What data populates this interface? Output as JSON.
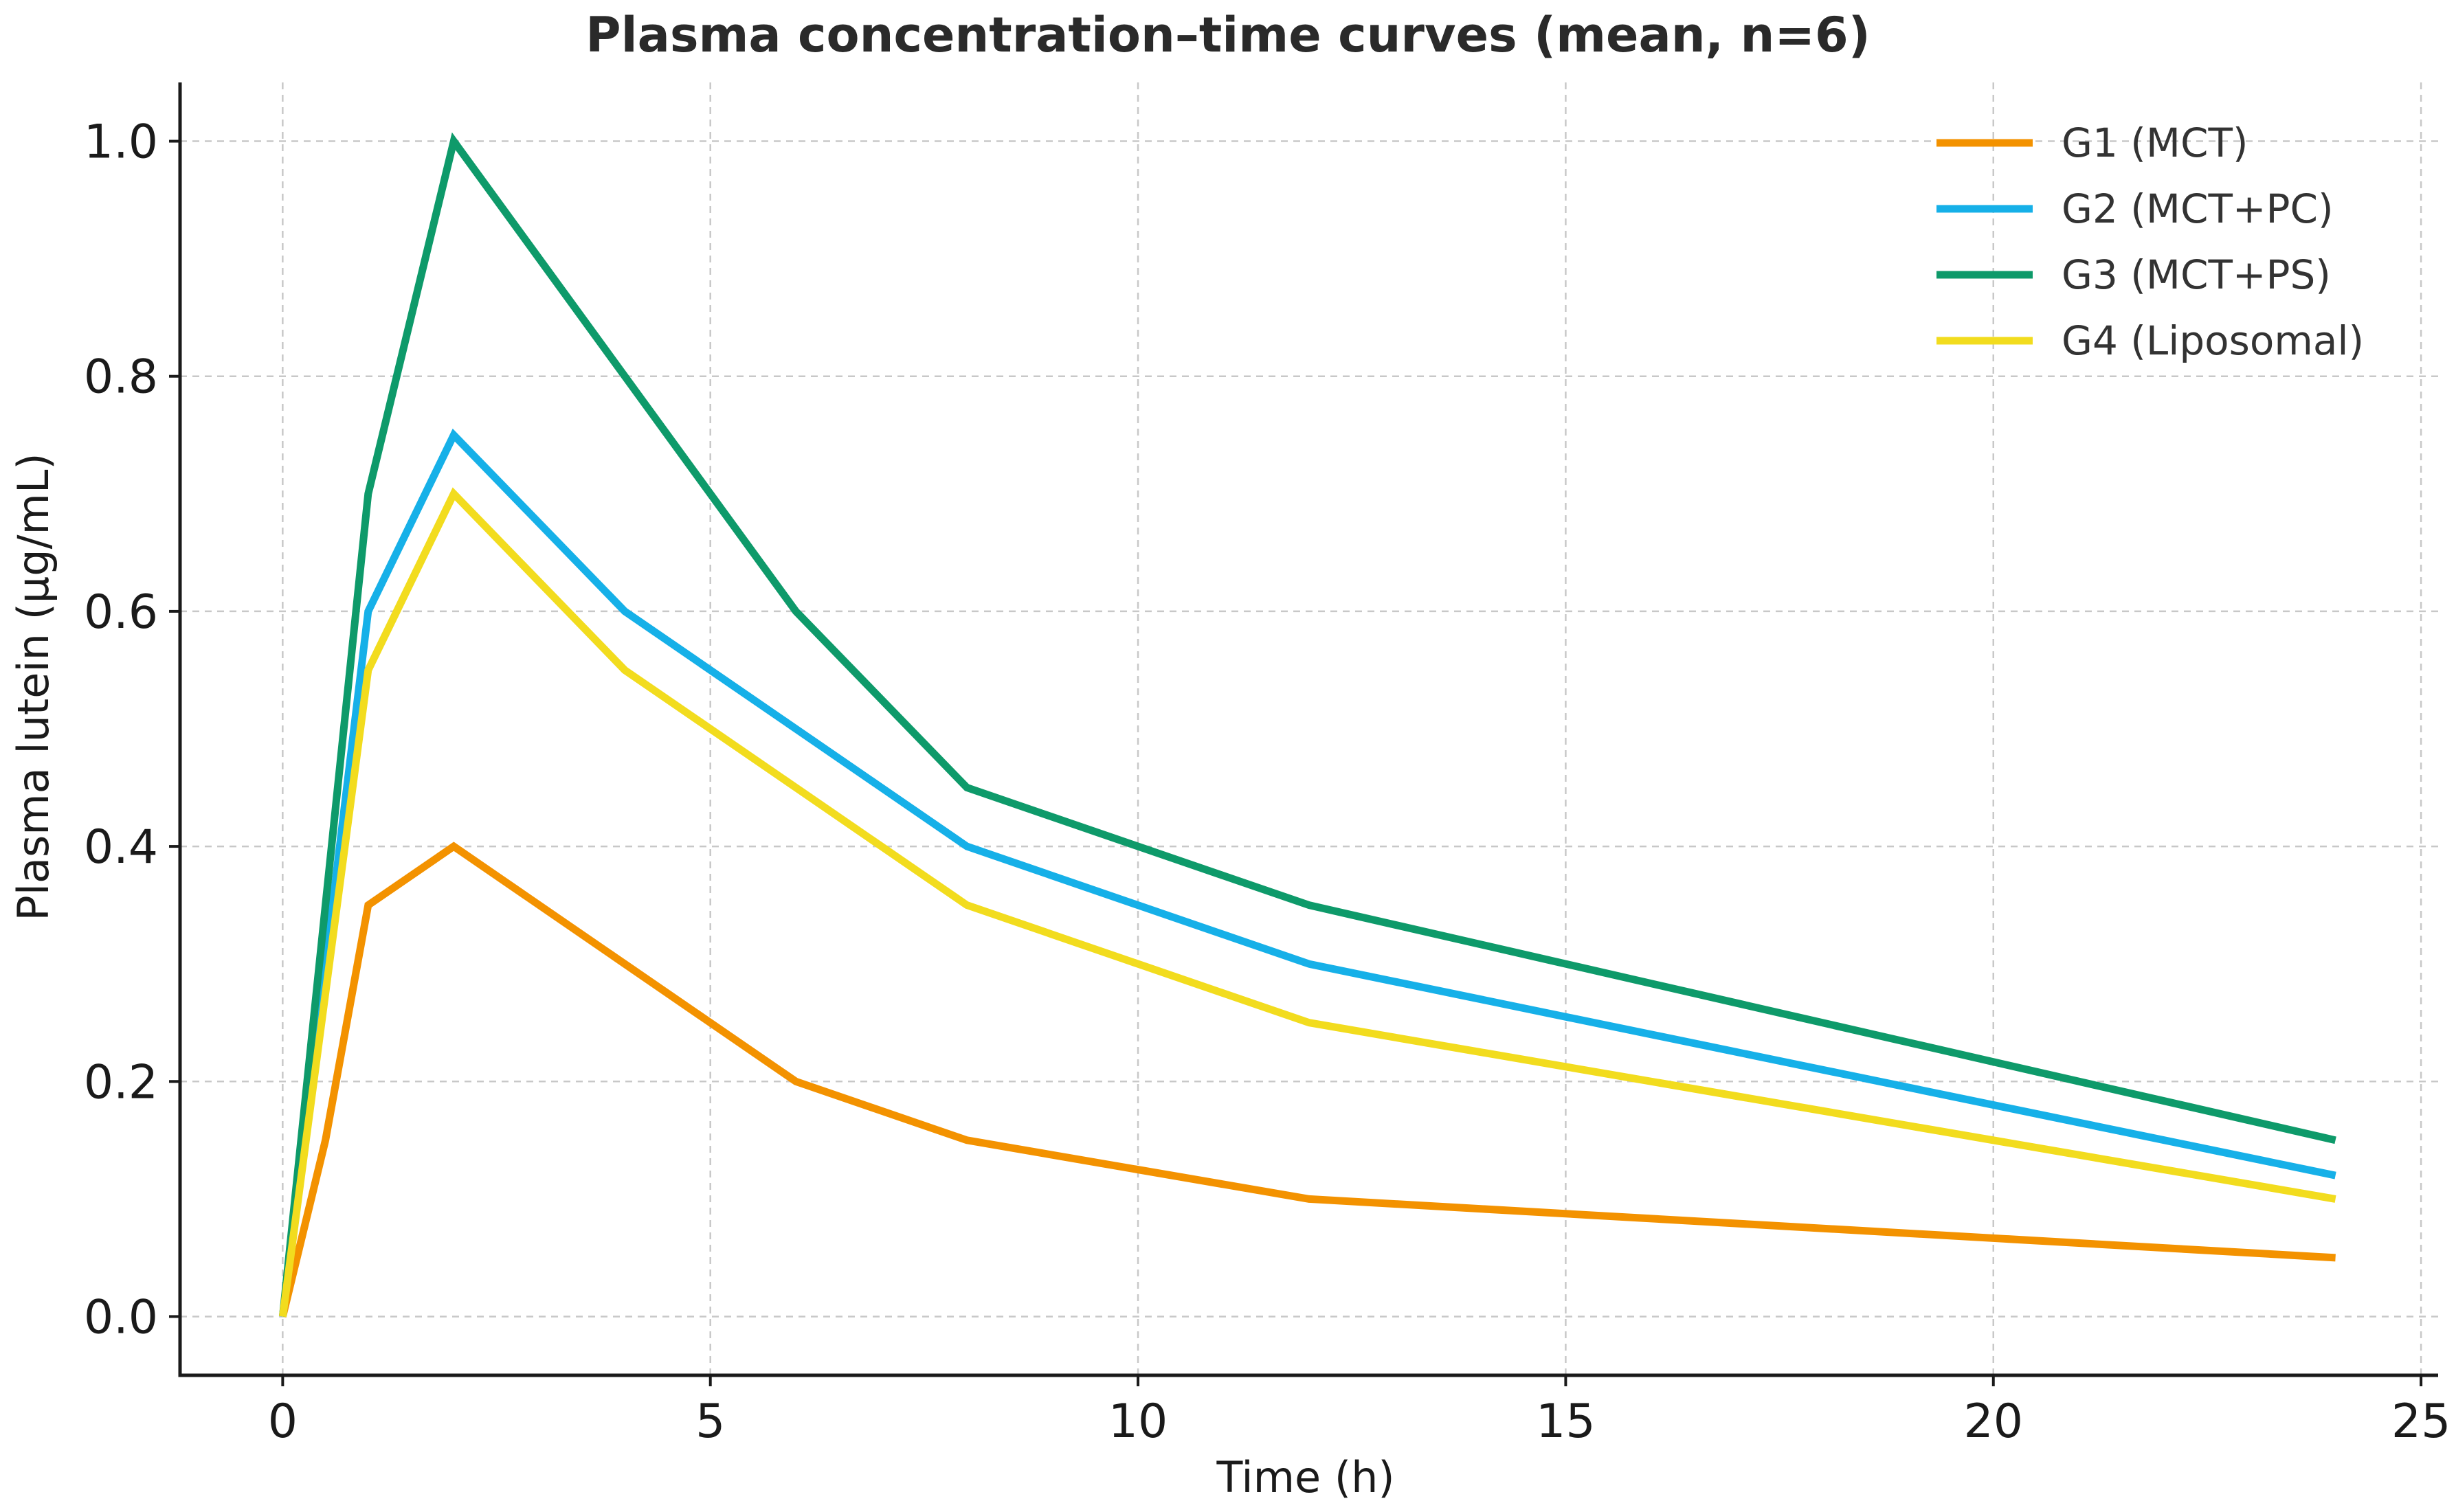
{
  "chart_data": {
    "type": "line",
    "title": "Plasma concentration–time curves (mean, n=6)",
    "xlabel": "Time (h)",
    "ylabel": "Plasma lutein (µg/mL)",
    "xlim": [
      -1.2,
      25.2
    ],
    "ylim": [
      -0.05,
      1.05
    ],
    "xticks": [
      0,
      5,
      10,
      15,
      20,
      25
    ],
    "xtick_labels": [
      "0",
      "5",
      "10",
      "15",
      "20",
      "25"
    ],
    "yticks": [
      0.0,
      0.2,
      0.4,
      0.6,
      0.8,
      1.0
    ],
    "ytick_labels": [
      "0.0",
      "0.2",
      "0.4",
      "0.6",
      "0.8",
      "1.0"
    ],
    "grid": true,
    "legend_position": "top-right",
    "x": [
      0,
      0.5,
      1,
      2,
      4,
      6,
      8,
      12,
      24
    ],
    "series": [
      {
        "name": "G1 (MCT)",
        "color": "#F39200",
        "values": [
          0.0,
          0.15,
          0.35,
          0.4,
          0.3,
          0.2,
          0.15,
          0.1,
          0.05
        ]
      },
      {
        "name": "G2 (MCT+PC)",
        "color": "#16B0E8",
        "values": [
          0.0,
          0.3,
          0.6,
          0.75,
          0.6,
          0.5,
          0.4,
          0.3,
          0.12
        ]
      },
      {
        "name": "G3 (MCT+PS)",
        "color": "#0E9A6A",
        "values": [
          0.0,
          0.35,
          0.7,
          1.0,
          0.8,
          0.6,
          0.45,
          0.35,
          0.15
        ]
      },
      {
        "name": "G4 (Liposomal)",
        "color": "#F2DC1E",
        "values": [
          0.0,
          0.275,
          0.55,
          0.7,
          0.55,
          0.45,
          0.35,
          0.25,
          0.1
        ]
      }
    ]
  }
}
